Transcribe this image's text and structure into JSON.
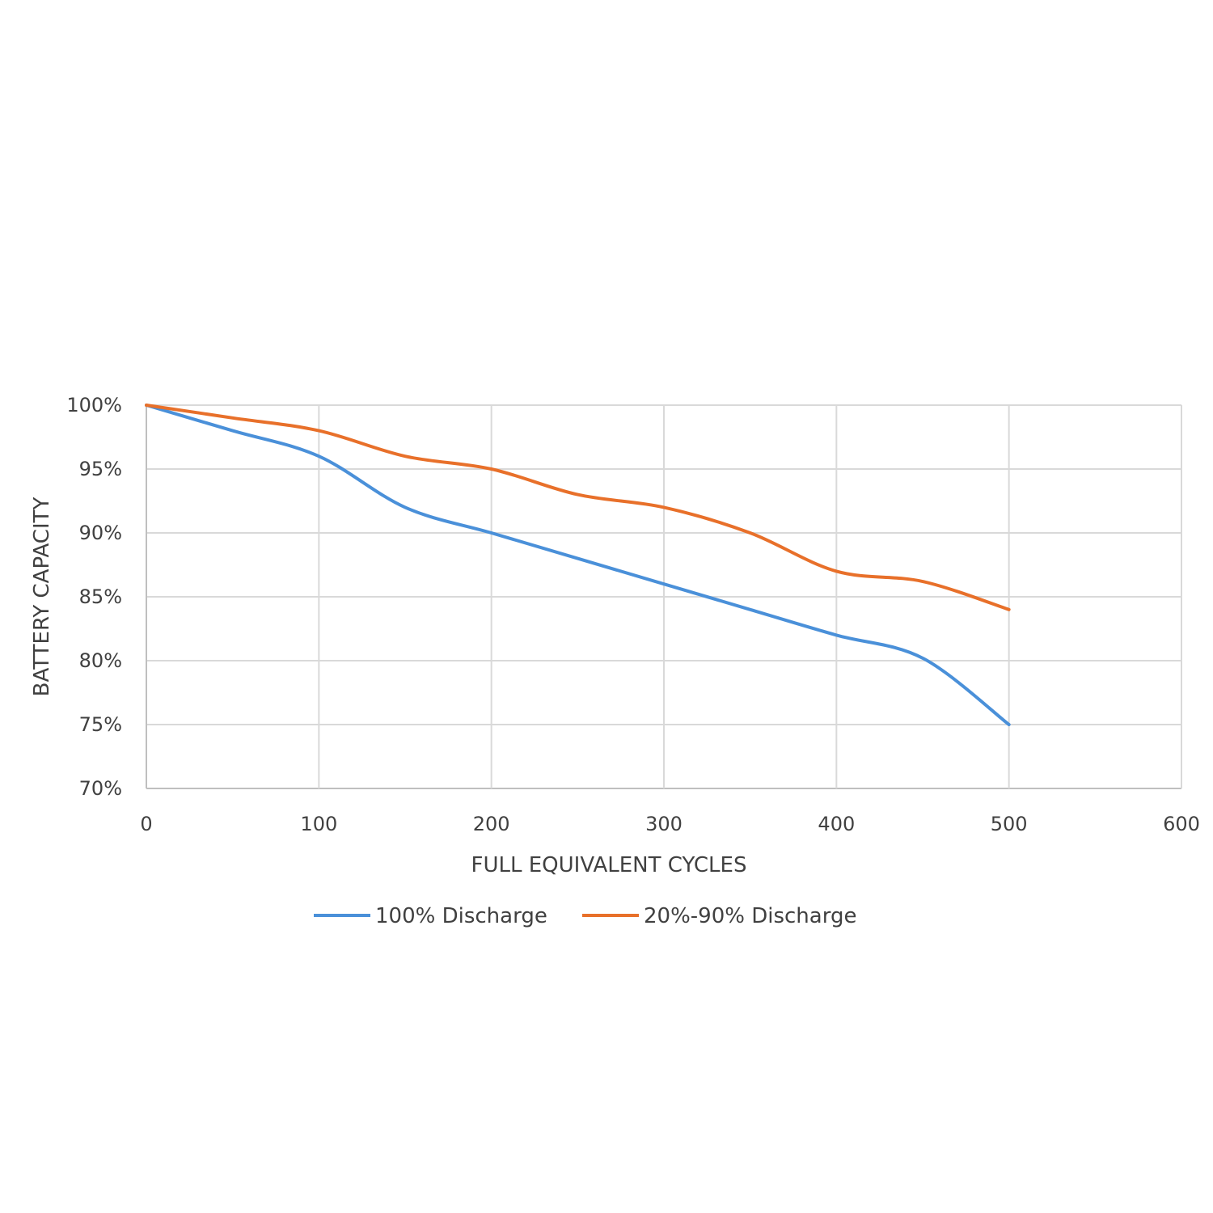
{
  "chart_data": {
    "type": "line",
    "title": "",
    "xlabel": "FULL EQUIVALENT CYCLES",
    "ylabel": "BATTERY CAPACITY",
    "xlim": [
      0,
      600
    ],
    "ylim": [
      70,
      100
    ],
    "x_ticks": [
      0,
      100,
      200,
      300,
      400,
      500,
      600
    ],
    "x_tick_labels": [
      "0",
      "100",
      "200",
      "300",
      "400",
      "500",
      "600"
    ],
    "y_ticks": [
      70,
      75,
      80,
      85,
      90,
      95,
      100
    ],
    "y_tick_labels": [
      "70%",
      "75%",
      "80%",
      "85%",
      "90%",
      "95%",
      "100%"
    ],
    "grid": true,
    "legend_position": "bottom",
    "x": [
      0,
      50,
      100,
      150,
      200,
      250,
      300,
      350,
      400,
      450,
      500
    ],
    "series": [
      {
        "name": "100% Discharge",
        "color": "#4a90d9",
        "values": [
          100,
          98,
          96,
          92,
          90,
          88,
          86,
          84,
          82,
          80.2,
          75
        ]
      },
      {
        "name": "20%-90% Discharge",
        "color": "#e8702a",
        "values": [
          100,
          99,
          98,
          96,
          95,
          93,
          92,
          90,
          87,
          86.2,
          84
        ]
      }
    ]
  }
}
